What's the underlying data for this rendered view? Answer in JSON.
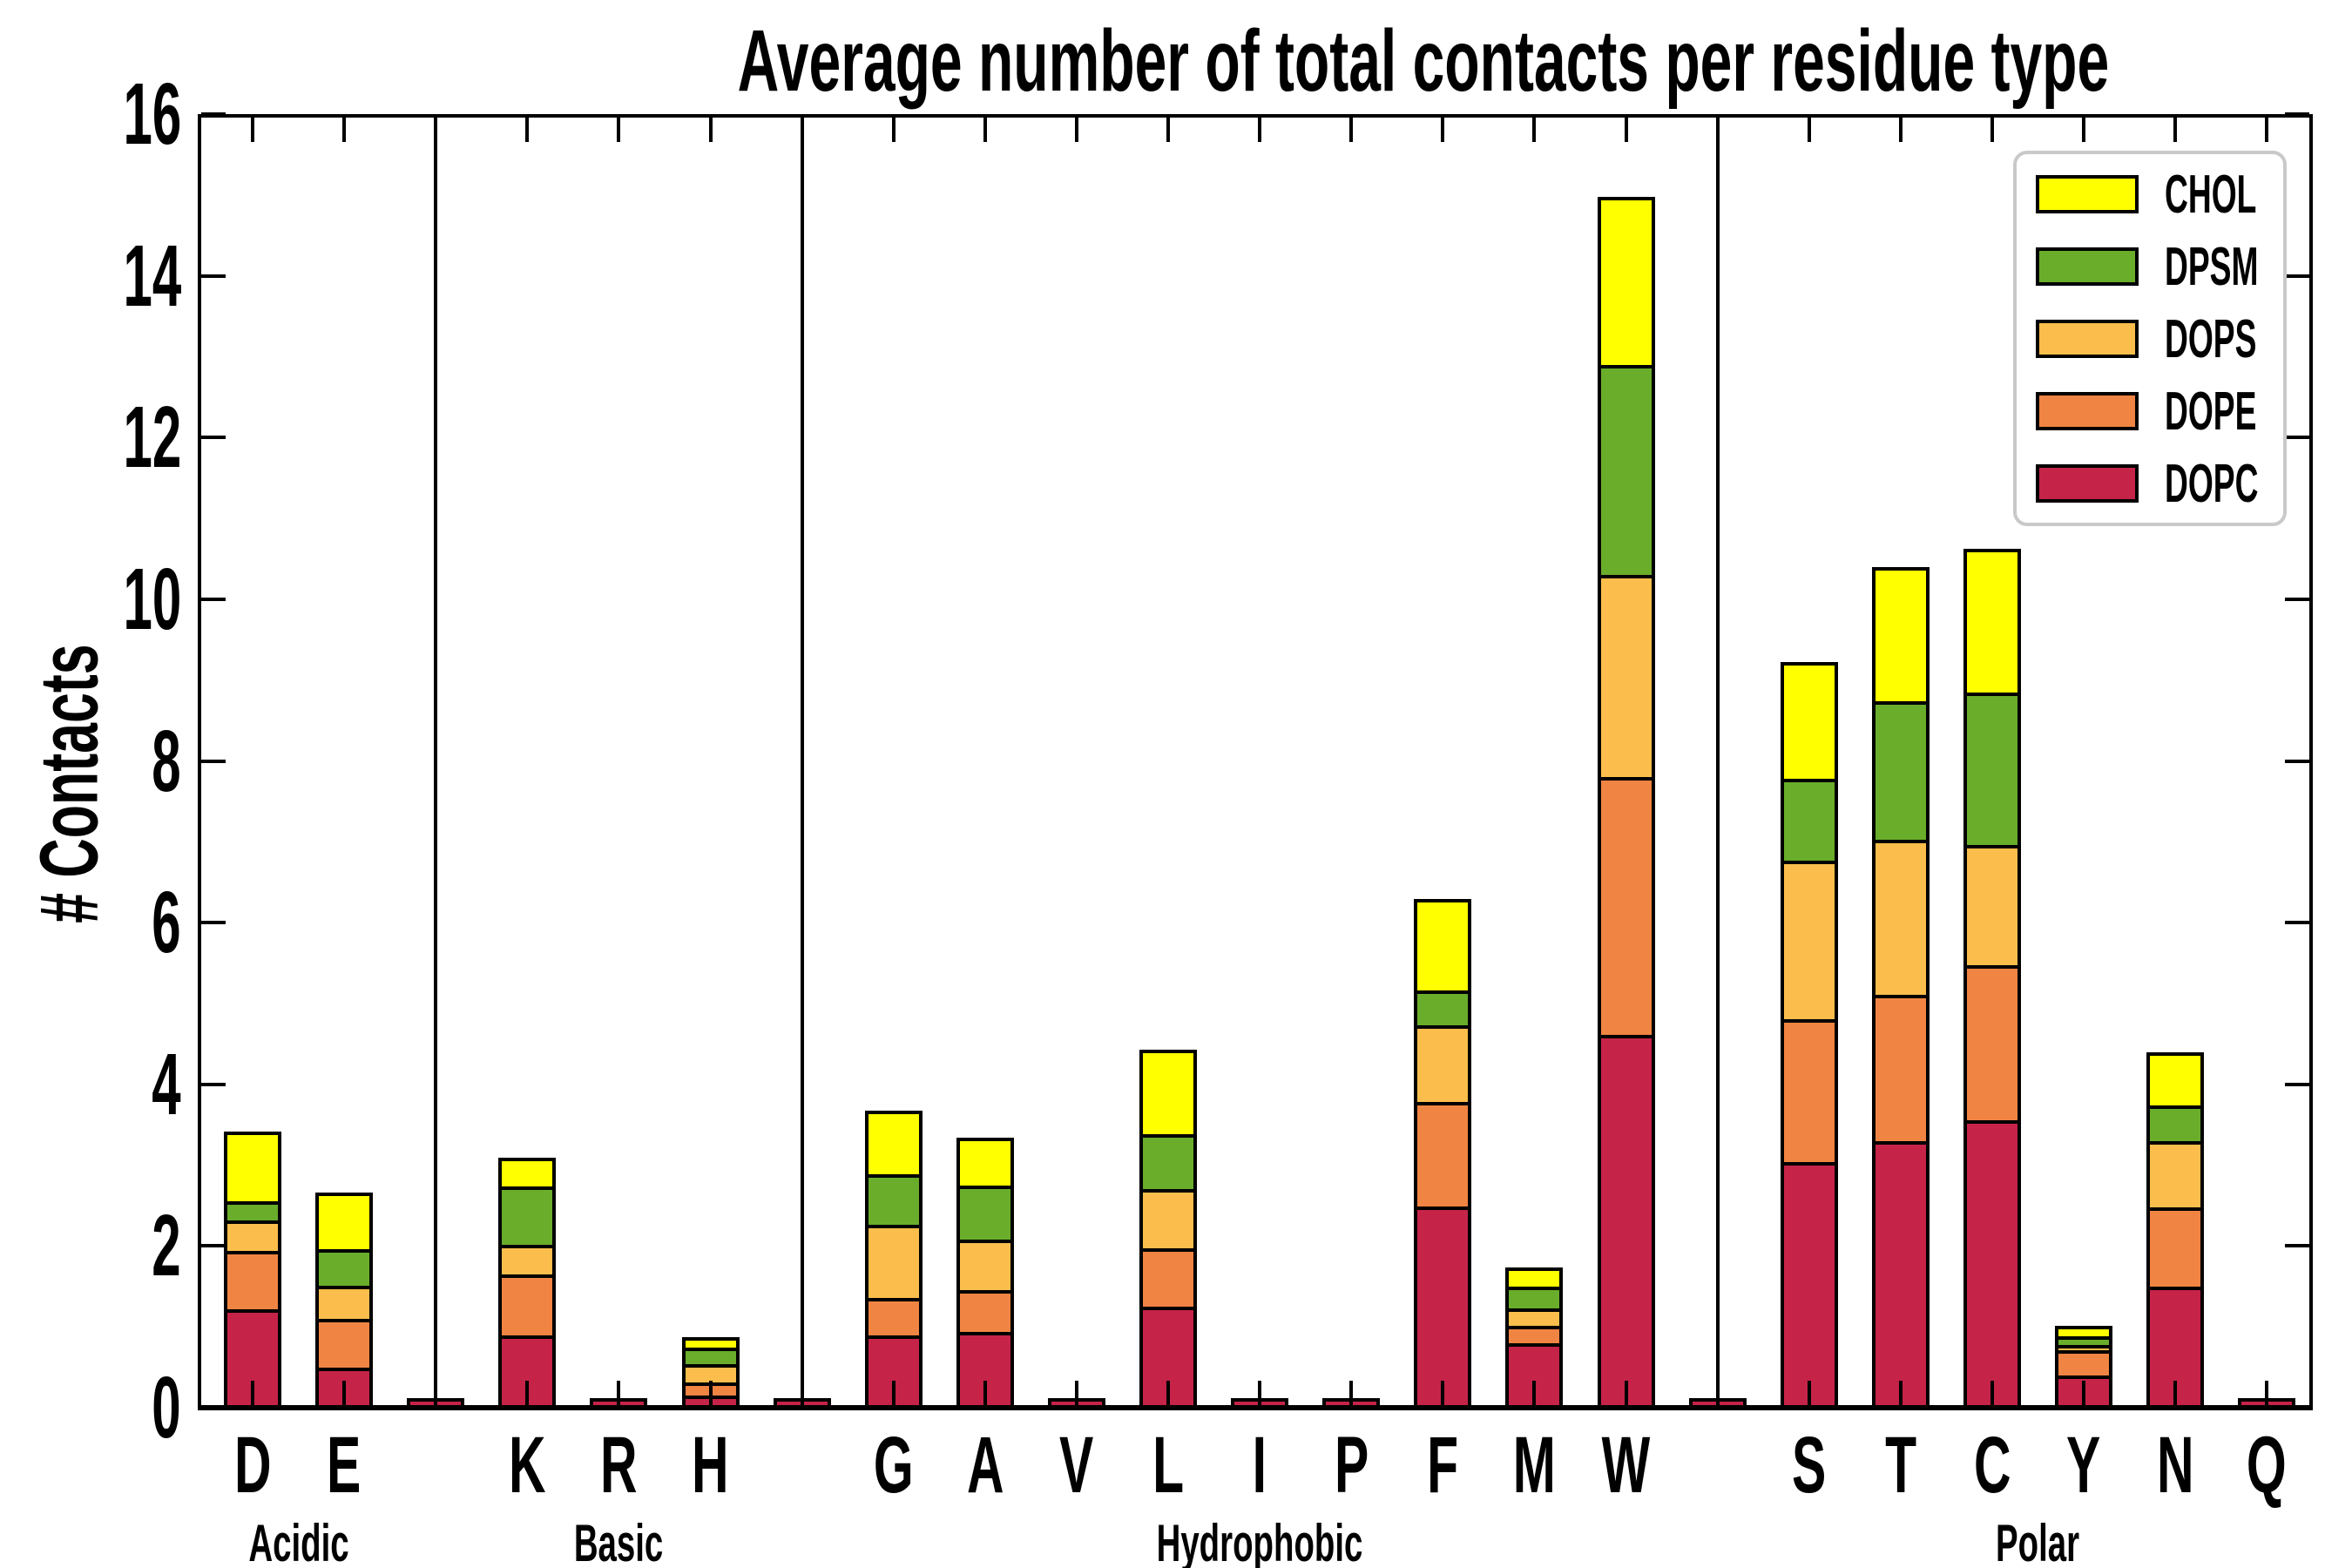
{
  "title": "Average number of total contacts per residue type",
  "ylabel": "# Contacts",
  "legend": {
    "entries": [
      {
        "label": "CHOL",
        "color": "#FFFF00"
      },
      {
        "label": "DPSM",
        "color": "#69AD2B"
      },
      {
        "label": "DOPS",
        "color": "#FBBE4C"
      },
      {
        "label": "DOPE",
        "color": "#F08442"
      },
      {
        "label": "DOPC",
        "color": "#C52348"
      }
    ]
  },
  "chart_data": {
    "type": "bar",
    "stacked": true,
    "title": "Average number of total contacts per residue type",
    "xlabel": "",
    "ylabel": "# Contacts",
    "ylim": [
      0,
      16
    ],
    "yticks": [
      0,
      2,
      4,
      6,
      8,
      10,
      12,
      14,
      16
    ],
    "grid": false,
    "legend_position": "upper right",
    "series_order_bottom_to_top": [
      "DOPC",
      "DOPE",
      "DOPS",
      "DPSM",
      "CHOL"
    ],
    "colors": {
      "CHOL": "#FFFF00",
      "DPSM": "#69AD2B",
      "DOPS": "#FBBE4C",
      "DOPE": "#F08442",
      "DOPC": "#C52348"
    },
    "groups": [
      {
        "name": "Acidic",
        "residues": [
          "D",
          "E"
        ]
      },
      {
        "name": "Basic",
        "residues": [
          "K",
          "R",
          "H"
        ]
      },
      {
        "name": "Hydrophobic",
        "residues": [
          "G",
          "A",
          "V",
          "L",
          "I",
          "P",
          "F",
          "M",
          "W"
        ]
      },
      {
        "name": "Polar",
        "residues": [
          "S",
          "T",
          "C",
          "Y",
          "N",
          "Q"
        ]
      }
    ],
    "categories": [
      "D",
      "E",
      "K",
      "R",
      "H",
      "G",
      "A",
      "V",
      "L",
      "I",
      "P",
      "F",
      "M",
      "W",
      "S",
      "T",
      "C",
      "Y",
      "N",
      "Q"
    ],
    "series": [
      {
        "name": "DOPC",
        "values": [
          1.18,
          0.46,
          0.86,
          0.02,
          0.12,
          0.86,
          0.9,
          0.02,
          1.22,
          0.02,
          0.01,
          2.46,
          0.77,
          4.58,
          3.01,
          3.26,
          3.52,
          0.37,
          1.46,
          0.01
        ]
      },
      {
        "name": "DOPE",
        "values": [
          0.73,
          0.61,
          0.76,
          0,
          0.16,
          0.47,
          0.52,
          0,
          0.72,
          0,
          0,
          1.29,
          0.21,
          3.19,
          1.76,
          1.81,
          1.92,
          0.31,
          0.99,
          0
        ]
      },
      {
        "name": "DOPS",
        "values": [
          0.37,
          0.41,
          0.36,
          0,
          0.23,
          0.9,
          0.63,
          0,
          0.73,
          0,
          0,
          0.95,
          0.22,
          2.5,
          1.96,
          1.92,
          1.49,
          0.06,
          0.81,
          0
        ]
      },
      {
        "name": "DPSM",
        "values": [
          0.24,
          0.45,
          0.72,
          0,
          0.2,
          0.63,
          0.67,
          0,
          0.68,
          0,
          0,
          0.43,
          0.27,
          2.6,
          1.02,
          1.72,
          1.88,
          0.11,
          0.45,
          0
        ]
      },
      {
        "name": "CHOL",
        "values": [
          0.82,
          0.66,
          0.32,
          0,
          0.09,
          0.74,
          0.54,
          0,
          1.0,
          0,
          0,
          1.09,
          0.19,
          2.03,
          1.4,
          1.61,
          1.74,
          0.09,
          0.61,
          0
        ]
      }
    ],
    "totals": [
      3.34,
      2.59,
      3.02,
      0.02,
      0.8,
      3.6,
      3.26,
      0.02,
      4.35,
      0.02,
      0.01,
      6.22,
      1.66,
      14.9,
      9.15,
      10.32,
      10.55,
      0.94,
      4.32,
      0.01
    ],
    "divider_slot_value": 0.02
  }
}
